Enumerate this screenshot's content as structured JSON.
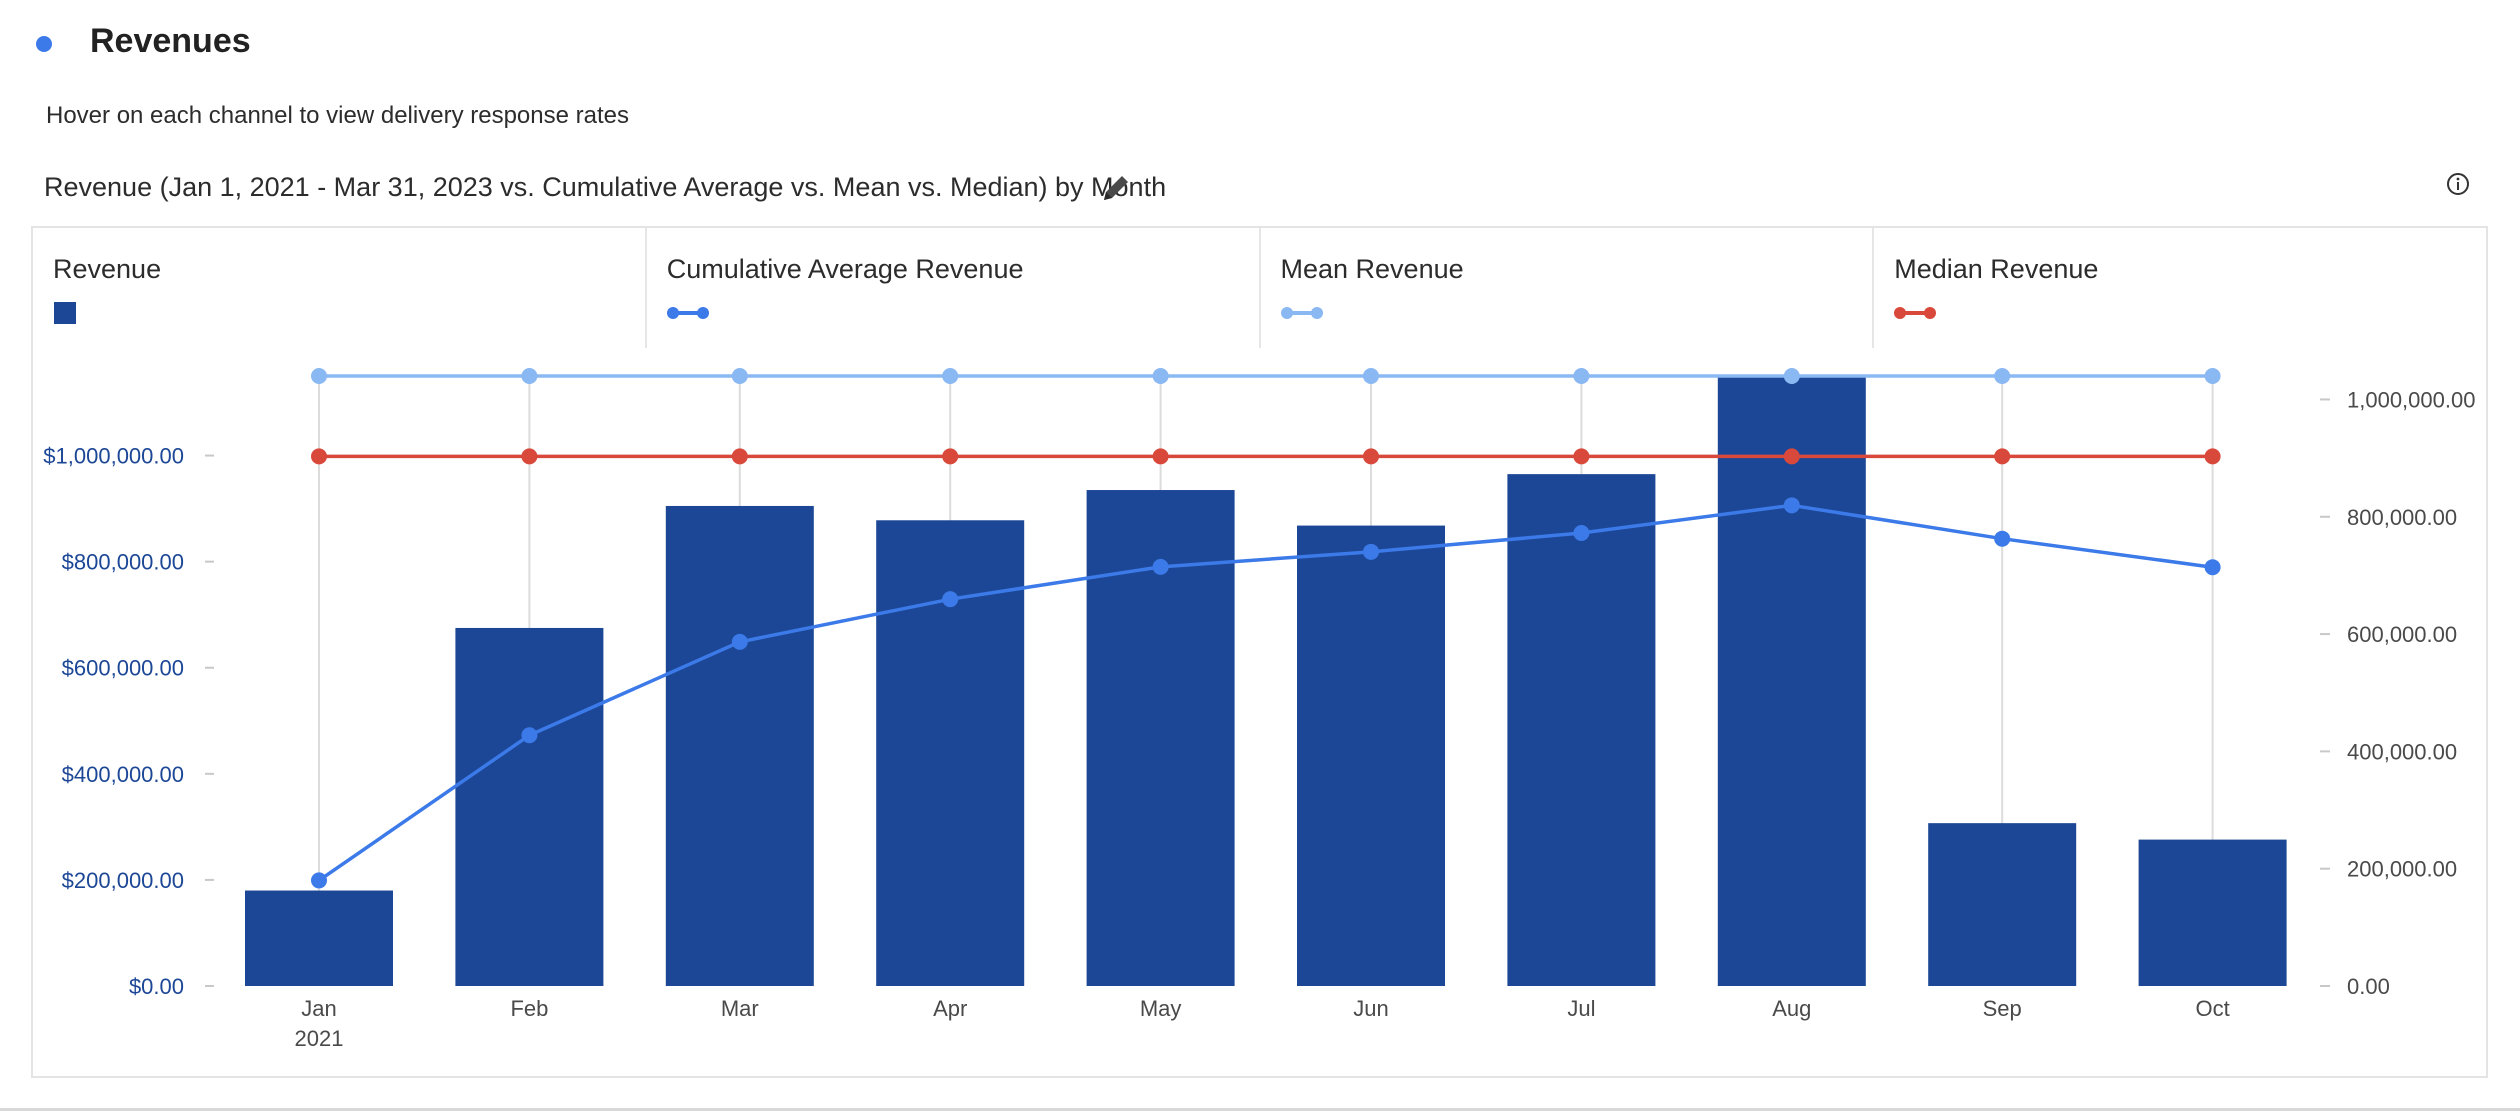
{
  "header": {
    "title": "Revenues",
    "subtitle": "Hover on each channel to view delivery response rates",
    "chart_heading": "Revenue (Jan 1, 2021 - Mar 31, 2023 vs. Cumulative Average vs. Mean vs. Median) by Month",
    "dot_color": "#3b7ae8"
  },
  "icons": {
    "edit": "pencil-icon",
    "info": "info-icon"
  },
  "legend": [
    {
      "label": "Revenue",
      "color": "#1c4796",
      "kind": "square"
    },
    {
      "label": "Cumulative Average Revenue",
      "color": "#3b7ae8",
      "kind": "line"
    },
    {
      "label": "Mean Revenue",
      "color": "#8ab8f2",
      "kind": "line"
    },
    {
      "label": "Median Revenue",
      "color": "#d9493b",
      "kind": "line"
    }
  ],
  "chart_data": {
    "type": "bar",
    "categories": [
      "Jan",
      "Feb",
      "Mar",
      "Apr",
      "May",
      "Jun",
      "Jul",
      "Aug",
      "Sep",
      "Oct"
    ],
    "category_sublabels": [
      "2021",
      "",
      "",
      "",
      "",
      "",
      "",
      "",
      "",
      ""
    ],
    "series": [
      {
        "name": "Revenue",
        "type": "bar",
        "axis": "left",
        "color": "#1c4796",
        "values": [
          180000,
          675000,
          905000,
          878000,
          935000,
          868000,
          965000,
          1150000,
          307000,
          276000
        ]
      },
      {
        "name": "Cumulative Average Revenue",
        "type": "line",
        "axis": "right",
        "color": "#3b7ae8",
        "values": [
          180000,
          427500,
          586700,
          659500,
          714600,
          740200,
          772300,
          819500,
          762600,
          714000
        ]
      },
      {
        "name": "Mean Revenue",
        "type": "line",
        "axis": "right",
        "color": "#8ab8f2",
        "values": [
          1040000,
          1040000,
          1040000,
          1040000,
          1040000,
          1040000,
          1040000,
          1040000,
          1040000,
          1040000
        ]
      },
      {
        "name": "Median Revenue",
        "type": "line",
        "axis": "right",
        "color": "#d9493b",
        "values": [
          903000,
          903000,
          903000,
          903000,
          903000,
          903000,
          903000,
          903000,
          903000,
          903000
        ]
      }
    ],
    "left_axis": {
      "ticks": [
        0,
        200000,
        400000,
        600000,
        800000,
        1000000
      ],
      "tick_labels": [
        "$0.00",
        "$200,000.00",
        "$400,000.00",
        "$600,000.00",
        "$800,000.00",
        "$1,000,000.00"
      ],
      "ylim": [
        0,
        1150000
      ],
      "color": "#1c4796"
    },
    "right_axis": {
      "ticks": [
        0,
        200000,
        400000,
        600000,
        800000,
        1000000
      ],
      "tick_labels": [
        "0.00",
        "200,000.00",
        "400,000.00",
        "600,000.00",
        "800,000.00",
        "1,000,000.00"
      ],
      "ylim": [
        0,
        1040000
      ],
      "color": "#4a4a4a"
    },
    "grid": "vertical",
    "legend_position": "top"
  }
}
